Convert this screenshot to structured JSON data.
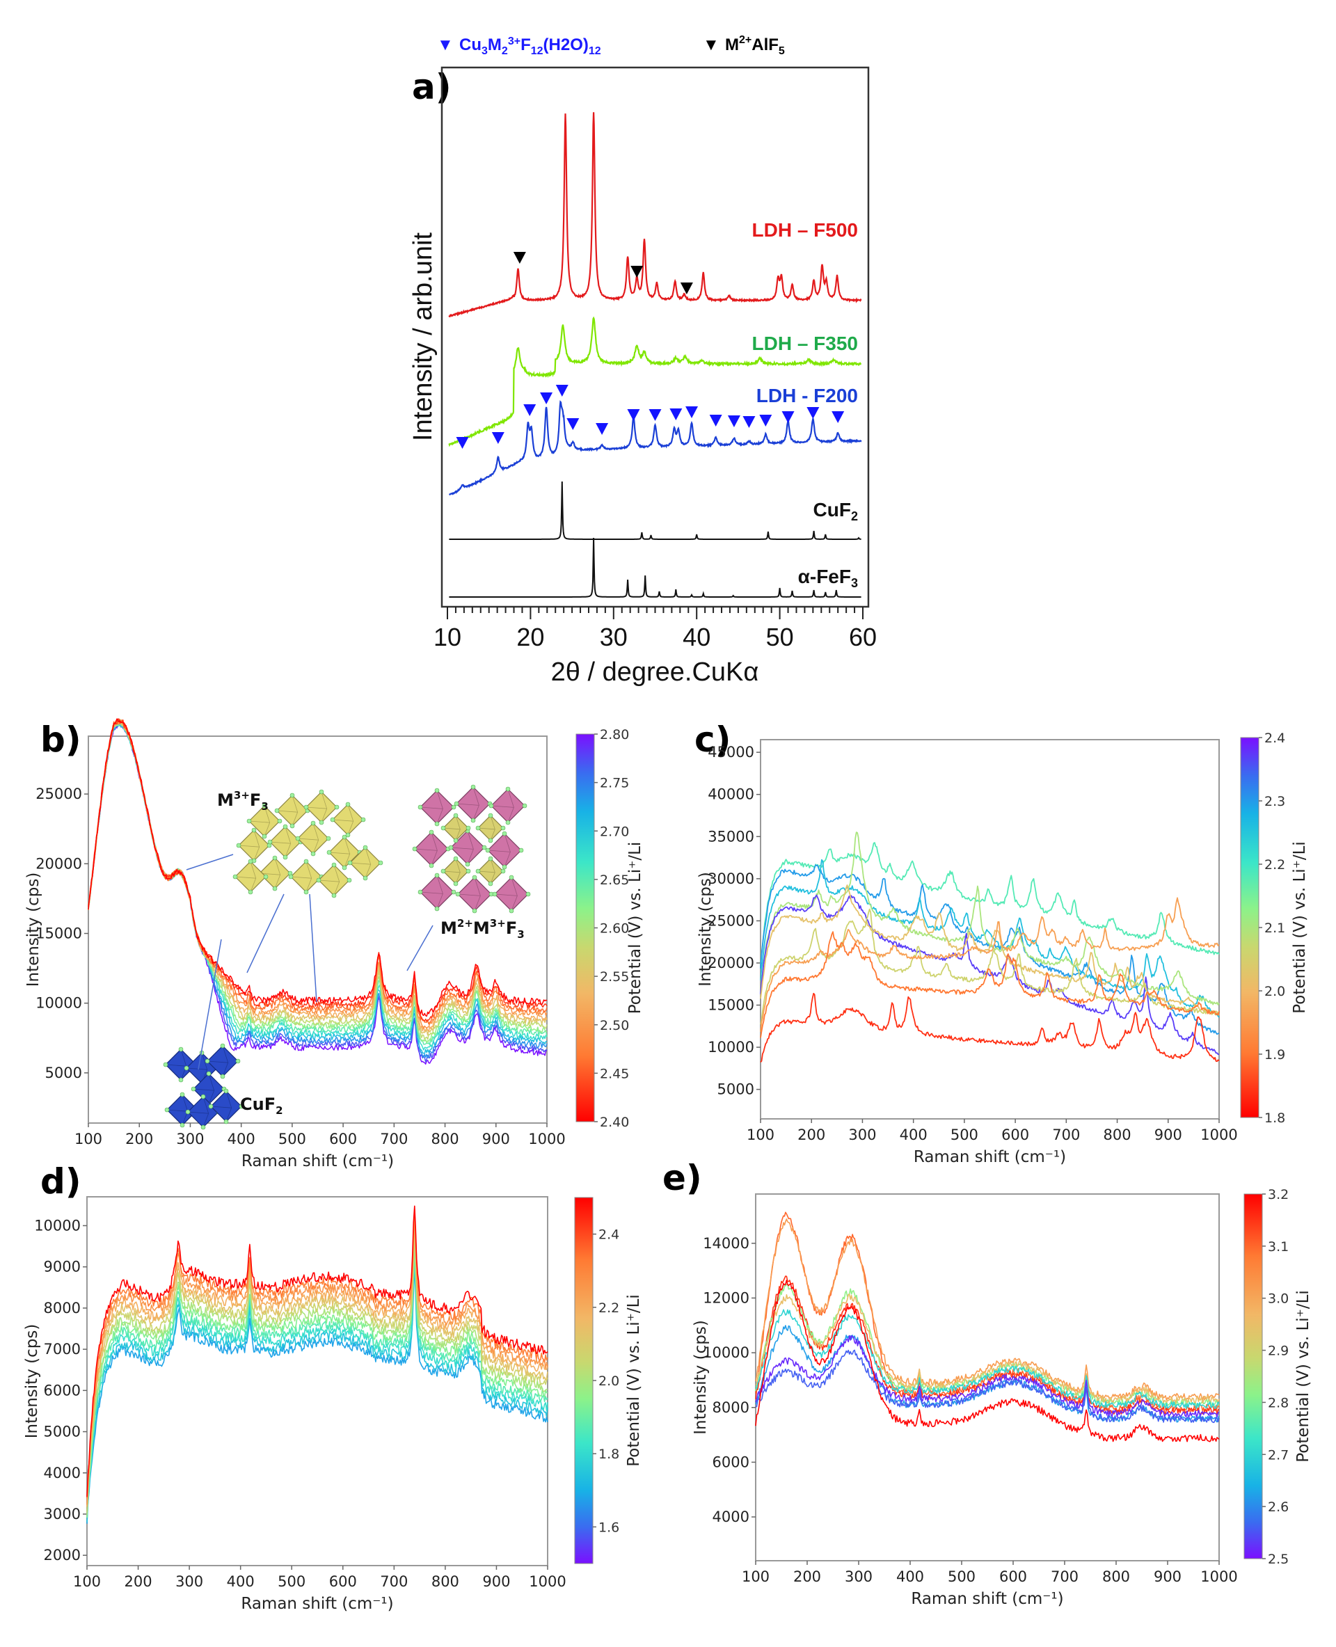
{
  "figure": {
    "legend": [
      {
        "marker": "▼",
        "label": "Cu3M2 3+F12(H2O)12",
        "color": "#1a1aff"
      },
      {
        "marker": "▼",
        "label": "M2+AlF5",
        "color": "#000000"
      }
    ]
  },
  "chart_data": [
    {
      "panel": "a)",
      "type": "line",
      "title": "",
      "xlabel": "2θ / degree.CuKα",
      "ylabel": "Intensity / arb.unit",
      "xlim": [
        10,
        60
      ],
      "xticks": [
        "10",
        "20",
        "30",
        "40",
        "50",
        "60"
      ],
      "yticks": [],
      "grid": false,
      "series": [
        {
          "name": "LDH – F500",
          "color": "#e31a1c",
          "peaks_2theta": [
            18.5,
            24.2,
            27.6,
            31.7,
            32.8,
            33.7,
            35.2,
            37.4,
            38.5,
            40.8,
            43.9,
            49.8,
            50.2,
            51.5,
            54.1,
            55.1,
            55.6,
            56.9
          ]
        },
        {
          "name": "LDH – F350",
          "color": "#7fe600",
          "peaks_2theta": [
            18.5,
            23.9,
            27.6,
            32.8,
            33.7,
            37.5,
            38.6,
            40.6,
            44,
            47.5,
            53.5,
            56.5
          ]
        },
        {
          "name": "LDH - F200",
          "color": "#1a3fd6",
          "peaks_2theta": [
            11.8,
            16.1,
            19.9,
            21.9,
            23.8,
            25.1,
            28.6,
            32.4,
            35.0,
            37.5,
            39.4,
            42.3,
            44.5,
            46.3,
            48.3,
            51.0,
            54.0,
            57.0
          ]
        },
        {
          "name": "CuF2",
          "color": "#111111",
          "peaks_2theta": [
            23.8,
            33.4,
            34.5,
            40.0,
            48.6,
            54.1,
            55.5,
            59.5
          ]
        },
        {
          "name": "α-FeF3",
          "color": "#111111",
          "peaks_2theta": [
            27.6,
            31.7,
            33.8,
            35.5,
            37.5,
            39.4,
            40.8,
            44.4,
            50.0,
            51.5,
            54.1,
            55.5,
            56.8
          ]
        }
      ],
      "annotations": {
        "black_markers_2theta": [
          18.7,
          32.8,
          38.8
        ],
        "blue_markers_2theta": [
          11.8,
          16.1,
          19.9,
          21.9,
          23.8,
          25.1,
          28.6,
          32.4,
          35.0,
          37.5,
          39.4,
          42.3,
          44.5,
          46.3,
          48.3,
          51.0,
          54.0,
          57.0
        ]
      }
    },
    {
      "panel": "b)",
      "type": "line",
      "xlabel": "Raman shift (cm−1)",
      "ylabel": "Intensity (cps)",
      "xlim": [
        100,
        1000
      ],
      "ylim": [
        1400,
        29150
      ],
      "xticks": [
        100,
        200,
        300,
        400,
        500,
        600,
        700,
        800,
        900,
        1000
      ],
      "yticks": [
        5000,
        10000,
        15000,
        20000,
        25000
      ],
      "colorbar": {
        "label": "Potential (V) vs. Li+/Li",
        "min": 2.4,
        "max": 2.8,
        "ticks": [
          "2.40",
          "2.45",
          "2.50",
          "2.55",
          "2.60",
          "2.65",
          "2.70",
          "2.75",
          "2.80"
        ],
        "cmap": "rainbow",
        "reversed": true
      },
      "n_curves": 14,
      "curve_profile": {
        "peak_150": 26500,
        "dip_250": 17200,
        "peak_280": 19000,
        "plateau_red": 10200,
        "plateau_violet": 6800,
        "sharp_peaks": [
          415,
          480,
          670,
          740,
          810,
          860,
          900
        ]
      },
      "insets": [
        {
          "label": "M3+F3",
          "color": "#d8d16a"
        },
        {
          "label": "M2+M3+F3",
          "color": "#c96aa0"
        },
        {
          "label": "CuF2",
          "color": "#2244bb"
        }
      ]
    },
    {
      "panel": "c)",
      "type": "line",
      "xlabel": "Raman shift (cm−1)",
      "ylabel": "Intensity (cps)",
      "xlim": [
        100,
        1000
      ],
      "ylim": [
        1500,
        46500
      ],
      "xticks": [
        100,
        200,
        300,
        400,
        500,
        600,
        700,
        800,
        900,
        1000
      ],
      "yticks": [
        5000,
        10000,
        15000,
        20000,
        25000,
        30000,
        35000,
        40000,
        45000
      ],
      "colorbar": {
        "label": "Potential (V) vs. Li+/Li",
        "min": 1.8,
        "max": 2.4,
        "ticks": [
          "1.8",
          "1.9",
          "2.0",
          "2.1",
          "2.2",
          "2.3",
          "2.4"
        ],
        "cmap": "rainbow",
        "reversed": true
      },
      "series": [
        {
          "potential": 2.18,
          "level_start": 32000,
          "level_end": 21000
        },
        {
          "potential": 2.3,
          "level_start": 31000,
          "level_end": 11500
        },
        {
          "potential": 2.26,
          "level_start": 29000,
          "level_end": 13500
        },
        {
          "potential": 2.1,
          "level_start": 27000,
          "level_end": 15000
        },
        {
          "potential": 2.37,
          "level_start": 26500,
          "level_end": 9300
        },
        {
          "potential": 2.02,
          "level_start": 25500,
          "level_end": 14000
        },
        {
          "potential": 2.06,
          "level_start": 20500,
          "level_end": 14000
        },
        {
          "potential": 1.96,
          "level_start": 20000,
          "level_end": 22000
        },
        {
          "potential": 1.9,
          "level_start": 18000,
          "level_end": 14000
        },
        {
          "potential": 1.84,
          "level_start": 13000,
          "level_end": 8000
        }
      ]
    },
    {
      "panel": "d)",
      "type": "line",
      "xlabel": "Raman shift (cm−1)",
      "ylabel": "Intensity (cps)",
      "xlim": [
        100,
        1000
      ],
      "ylim": [
        1750,
        10700
      ],
      "xticks": [
        100,
        200,
        300,
        400,
        500,
        600,
        700,
        800,
        900,
        1000
      ],
      "yticks": [
        2000,
        3000,
        4000,
        5000,
        6000,
        7000,
        8000,
        9000,
        10000
      ],
      "colorbar": {
        "label": "Potential (V) vs. Li+/Li",
        "min": 1.5,
        "max": 2.5,
        "ticks": [
          "1.6",
          "1.8",
          "2.0",
          "2.2",
          "2.4"
        ],
        "cmap": "rainbow",
        "reversed": false
      },
      "n_curves": 12,
      "curve_profile": {
        "peak_165_red": 8900,
        "peak_280": 9600,
        "peak_740": 9300,
        "end_red": 6500,
        "end_low": 5300
      }
    },
    {
      "panel": "e)",
      "type": "line",
      "xlabel": "Raman shift (cm−1)",
      "ylabel": "Intensity (cps)",
      "xlim": [
        100,
        1000
      ],
      "ylim": [
        2400,
        15800
      ],
      "xticks": [
        100,
        200,
        300,
        400,
        500,
        600,
        700,
        800,
        900,
        1000
      ],
      "yticks": [
        4000,
        6000,
        8000,
        10000,
        12000,
        14000
      ],
      "colorbar": {
        "label": "Potential (V) vs. Li+/Li",
        "min": 2.5,
        "max": 3.2,
        "ticks": [
          "2.5",
          "2.6",
          "2.7",
          "2.8",
          "2.9",
          "3.0",
          "3.1",
          "3.2"
        ],
        "cmap": "rainbow",
        "reversed": false
      },
      "series": [
        {
          "potential": 3.1,
          "peak_160": 15000,
          "peak_280": 14200,
          "end": 7000
        },
        {
          "potential": 3.02,
          "peak_160": 14800,
          "peak_280": 14000,
          "end": 7400
        },
        {
          "potential": 3.15,
          "peak_160": 12700,
          "peak_280": 11700,
          "end": 6900
        },
        {
          "potential": 2.82,
          "peak_160": 12400,
          "peak_280": 12200,
          "end": 7200
        },
        {
          "potential": 2.95,
          "peak_160": 12000,
          "peak_280": 12000,
          "end": 7300
        },
        {
          "potential": 2.7,
          "peak_160": 11500,
          "peak_280": 11300,
          "end": 7100
        },
        {
          "potential": 2.62,
          "peak_160": 10900,
          "peak_280": 10600,
          "end": 6600
        },
        {
          "potential": 2.52,
          "peak_160": 9700,
          "peak_280": 10500,
          "end": 6800
        },
        {
          "potential": 2.56,
          "peak_160": 9300,
          "peak_280": 10000,
          "end": 6600
        },
        {
          "potential": 3.2,
          "peak_160": 12600,
          "peak_280": 11600,
          "end": 5900
        }
      ]
    }
  ]
}
